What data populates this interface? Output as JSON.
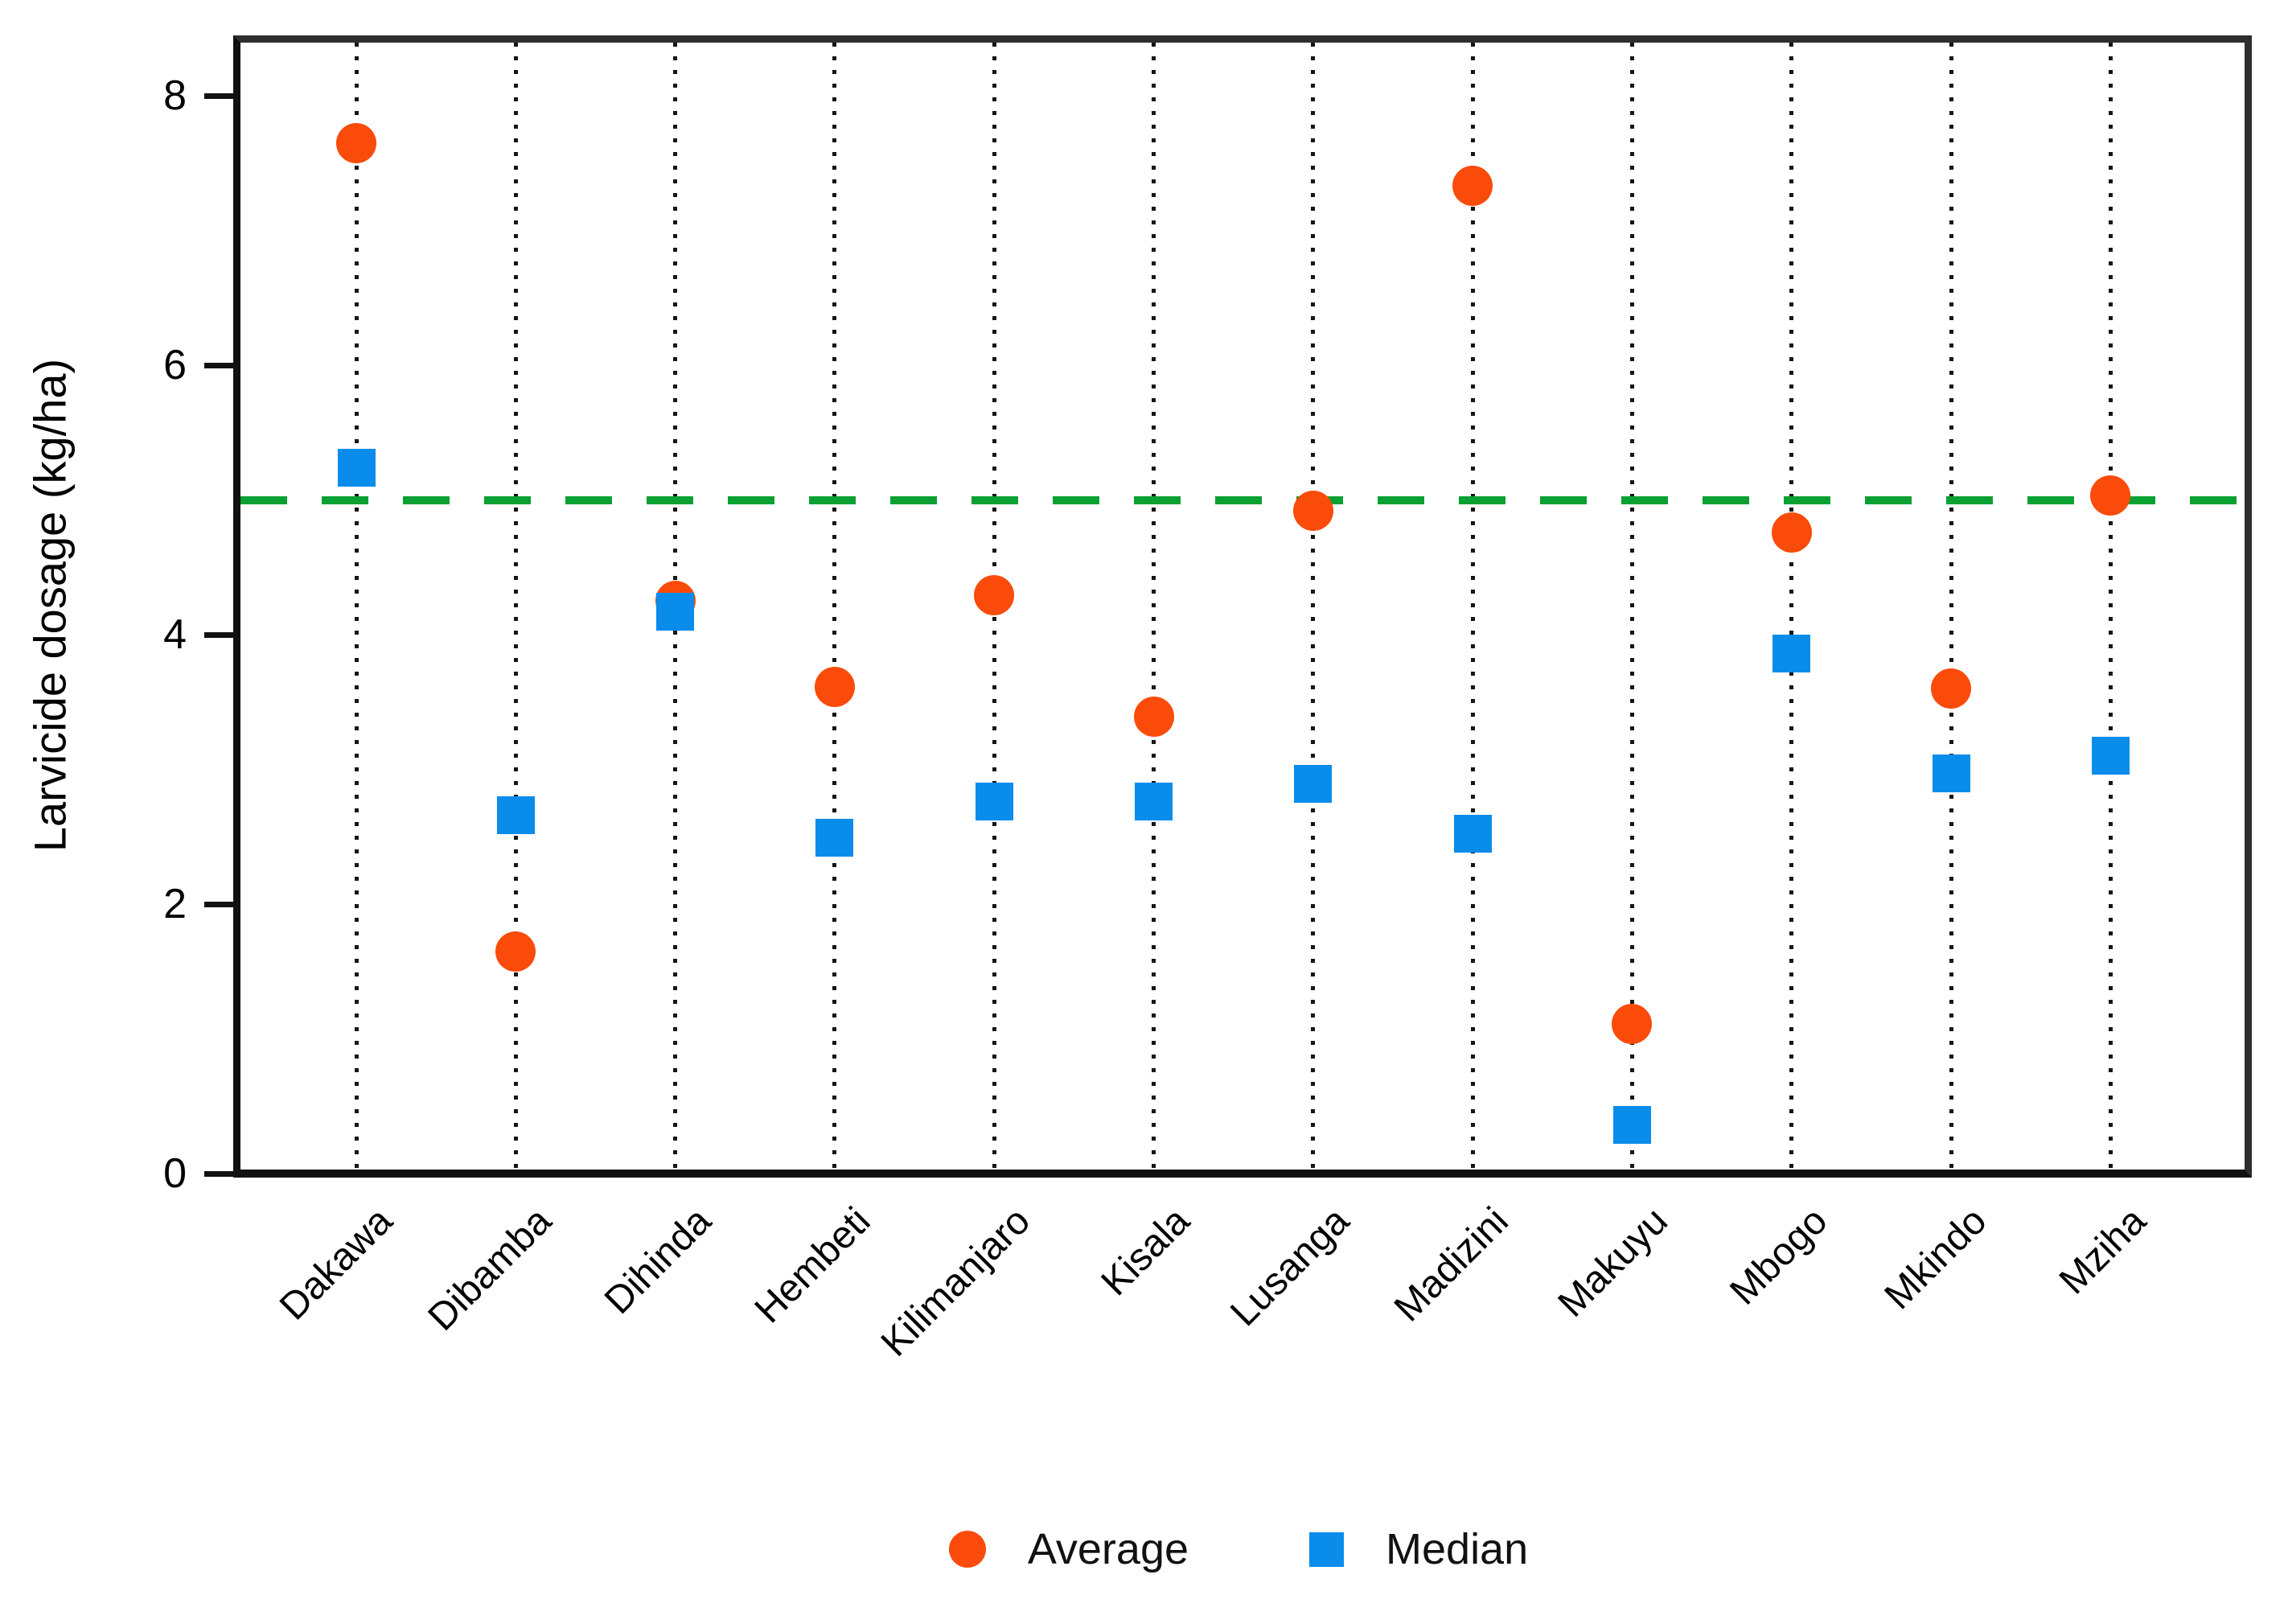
{
  "chart_data": {
    "type": "scatter",
    "title": "",
    "xlabel": "",
    "ylabel": "Larvicide dosage (kg/ha)",
    "ylim": [
      0,
      8.44
    ],
    "yticks": [
      0,
      2,
      4,
      6,
      8
    ],
    "grid": "vertical dotted category lines",
    "legend_position": "bottom-center",
    "categories": [
      "Dakawa",
      "Dibamba",
      "Dihinda",
      "Hembeti",
      "Kilimanjaro",
      "Kisala",
      "Lusanga",
      "Madizini",
      "Makuyu",
      "Mbogo",
      "Mkindo",
      "Mziha"
    ],
    "series": [
      {
        "name": "Average",
        "marker": "circle",
        "color": "#FA4B0A",
        "values": [
          7.65,
          1.65,
          4.25,
          3.61,
          4.29,
          3.39,
          4.92,
          7.33,
          1.11,
          4.76,
          3.6,
          5.03
        ]
      },
      {
        "name": "Median",
        "marker": "square",
        "color": "#0A8CEB",
        "values": [
          5.24,
          2.66,
          4.17,
          2.49,
          2.76,
          2.76,
          2.89,
          2.52,
          0.36,
          3.86,
          2.97,
          3.1
        ]
      }
    ],
    "reference_line": {
      "value": 5.0,
      "color": "#0AA032",
      "style": "dashed",
      "orientation": "horizontal"
    }
  },
  "legend": {
    "average_label": "Average",
    "median_label": "Median"
  },
  "axis": {
    "y_title": "Larvicide dosage (kg/ha)"
  },
  "colors": {
    "average": "#FA4B0A",
    "median": "#0A8CEB",
    "reference": "#0AA032",
    "grid": "#161616",
    "frame": "#2e2e2e",
    "background": "#ffffff"
  }
}
